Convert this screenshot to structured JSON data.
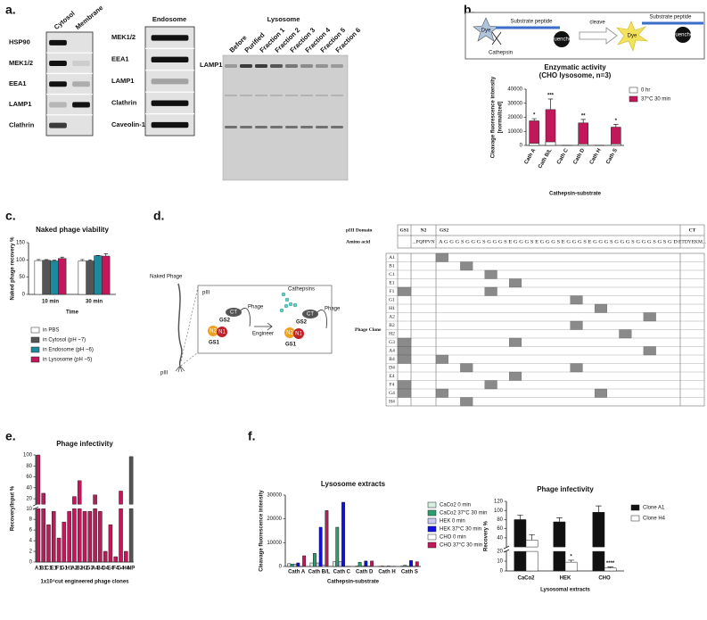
{
  "panel_labels": {
    "a": "a.",
    "b": "b.",
    "c": "c.",
    "d": "d.",
    "e": "e.",
    "f": "f."
  },
  "blots": {
    "cytosol_membrane": {
      "columns": [
        "Cytosol",
        "Membrane"
      ],
      "rows": [
        "HSP90",
        "MEK1/2",
        "EEA1",
        "LAMP1",
        "Clathrin"
      ]
    },
    "endosome": {
      "title": "Endosome",
      "rows": [
        "MEK1/2",
        "EEA1",
        "LAMP1",
        "Clathrin",
        "Caveolin-1"
      ]
    },
    "lysosome": {
      "title": "Lysosome",
      "columns": [
        "Before",
        "Purified",
        "Fraction 1",
        "Fraction 2",
        "Fraction 3",
        "Fraction 4",
        "Fraction 5",
        "Fraction 6"
      ],
      "rows": [
        "LAMP1"
      ]
    }
  },
  "schematic_b": {
    "substrate_left": "Substrate peptide",
    "dye_left": "Dye",
    "quencher_left": "Quencher",
    "enzyme": "Cathepsin",
    "arrow": "cleave",
    "substrate_right": "Substrate peptide",
    "dye_right": "Dye",
    "quencher_right": "Quencher"
  },
  "schematic_d": {
    "naked_phage": "Naked Phage",
    "piii_outer": "pIII",
    "piii_inner": "pIII",
    "arrow": "Engineer",
    "cathepsins": "Cathepsins",
    "before": {
      "gs2": "GS2",
      "n2": "N2",
      "n1": "N1",
      "gs1": "GS1",
      "ct": "CT",
      "phage": "Phage"
    },
    "after": {
      "gs2": "GS2",
      "n2": "N2",
      "n1": "N1",
      "gs1": "GS1",
      "ct": "CT",
      "phage": "Phage"
    }
  },
  "cut_table": {
    "domain_label": "pIII Domain",
    "domains": [
      "GS1",
      "N2",
      "GS2",
      "CT"
    ],
    "aa_label": "Amino acid",
    "aa": {
      "n2": "...PQPPVN",
      "gs2": "A G G G S G G G S G G G S E G G G S E G G G S E G G G S E G G G S G G G S G G G S G S G D",
      "ct": "ETDYEKM..."
    },
    "clone_label": "Phage Clone",
    "clones": [
      {
        "name": "A1",
        "gs1_cut": false,
        "cuts": [
          0
        ]
      },
      {
        "name": "B1",
        "gs1_cut": false,
        "cuts": [
          2
        ]
      },
      {
        "name": "C1",
        "gs1_cut": false,
        "cuts": [
          4
        ]
      },
      {
        "name": "E1",
        "gs1_cut": false,
        "cuts": [
          6
        ]
      },
      {
        "name": "F1",
        "gs1_cut": true,
        "cuts": [
          4
        ]
      },
      {
        "name": "G1",
        "gs1_cut": false,
        "cuts": [
          11
        ]
      },
      {
        "name": "H1",
        "gs1_cut": false,
        "cuts": [
          13
        ]
      },
      {
        "name": "A2",
        "gs1_cut": false,
        "cuts": [
          17
        ]
      },
      {
        "name": "B2",
        "gs1_cut": false,
        "cuts": [
          11
        ]
      },
      {
        "name": "H2",
        "gs1_cut": false,
        "cuts": [
          15
        ]
      },
      {
        "name": "G3",
        "gs1_cut": true,
        "cuts": [
          6
        ]
      },
      {
        "name": "A4",
        "gs1_cut": true,
        "cuts": [
          17
        ]
      },
      {
        "name": "B4",
        "gs1_cut": true,
        "cuts": [
          0
        ]
      },
      {
        "name": "D4",
        "gs1_cut": false,
        "cuts": [
          2,
          11
        ]
      },
      {
        "name": "E4",
        "gs1_cut": false,
        "cuts": [
          6
        ]
      },
      {
        "name": "F4",
        "gs1_cut": true,
        "cuts": [
          4
        ]
      },
      {
        "name": "G4",
        "gs1_cut": true,
        "cuts": [
          0,
          13
        ]
      },
      {
        "name": "H4",
        "gs1_cut": false,
        "cuts": [
          2
        ]
      }
    ]
  },
  "chart_data": [
    {
      "type": "bar",
      "title": "Enzymatic activity",
      "subtitle": "(CHO lysosome, n=3)",
      "xlabel": "Cathepsin-substrate",
      "ylabel": [
        "Cleavage fluorescence intensity",
        "[normalized]"
      ],
      "categories": [
        "Cath A",
        "Cath B/L",
        "Cath C",
        "Cath D",
        "Cath H",
        "Cath S"
      ],
      "overlap": true,
      "series": [
        {
          "name": "0 hr",
          "color": "#ffffff",
          "values": [
            1500,
            2500,
            0,
            1000,
            0,
            1000
          ]
        },
        {
          "name": "37°C 30 min",
          "color": "#c2185b",
          "values": [
            17500,
            25500,
            0,
            16000,
            0,
            13000
          ],
          "errors": [
            1500,
            7500,
            0,
            2500,
            0,
            2000
          ],
          "annotations": [
            "*",
            "***",
            null,
            "**",
            null,
            "*"
          ]
        }
      ],
      "ylim": [
        0,
        40000
      ],
      "yticks": [
        0,
        10000,
        20000,
        30000,
        40000
      ]
    },
    {
      "type": "bar",
      "title": "Naked phage viability",
      "xlabel": "Time",
      "ylabel": "Naked phage recovery %",
      "categories": [
        "10 min",
        "30 min"
      ],
      "series": [
        {
          "name": "in PBS",
          "color": "#ffffff",
          "values": [
            98,
            97
          ],
          "errors": [
            3,
            4
          ]
        },
        {
          "name": "in Cytosol (pH ~7)",
          "color": "#555555",
          "values": [
            99,
            97
          ],
          "errors": [
            2,
            3
          ]
        },
        {
          "name": "in Endosome (pH ~6)",
          "color": "#1b8a9c",
          "values": [
            97,
            112
          ],
          "errors": [
            2,
            1
          ]
        },
        {
          "name": "in Lysosome (pH ~5)",
          "color": "#c2185b",
          "values": [
            104,
            111
          ],
          "errors": [
            4,
            7
          ]
        }
      ],
      "ylim": [
        0,
        150
      ],
      "yticks": [
        0,
        50,
        100,
        150
      ]
    },
    {
      "type": "bar",
      "title": "Phage infectivity",
      "xlabel": "1x10⁴cut engineered phage clones",
      "ylabel": "Recovery/Input %",
      "categories": [
        "A1",
        "B1",
        "C1",
        "E1",
        "F1",
        "G1",
        "H1",
        "A2",
        "B2",
        "H2",
        "G3",
        "A4",
        "B4",
        "D4",
        "E4",
        "F4",
        "G4",
        "H4",
        "NP"
      ],
      "values": [
        100,
        30,
        7,
        9.5,
        4.5,
        7.5,
        9.5,
        24,
        53,
        9.5,
        9.5,
        27,
        9.5,
        2,
        7,
        1,
        34,
        2,
        97
      ],
      "colors": [
        "#c2185b",
        "#c2185b",
        "#c2185b",
        "#c2185b",
        "#c2185b",
        "#c2185b",
        "#c2185b",
        "#c2185b",
        "#c2185b",
        "#c2185b",
        "#c2185b",
        "#c2185b",
        "#c2185b",
        "#c2185b",
        "#c2185b",
        "#c2185b",
        "#c2185b",
        "#c2185b",
        "#555555"
      ],
      "ylim_segments": [
        [
          0,
          10
        ],
        [
          10,
          100
        ]
      ],
      "yticks": [
        0,
        2,
        4,
        6,
        8,
        10,
        20,
        40,
        60,
        80,
        100
      ]
    },
    {
      "type": "bar",
      "title": "Lysosome extracts",
      "xlabel": "Cathepsin-substrate",
      "ylabel": "Cleavage fluorescence intensity",
      "categories": [
        "Cath A",
        "Cath B/L",
        "Cath C",
        "Cath D",
        "Cath H",
        "Cath S"
      ],
      "series": [
        {
          "name": "CaCo2 0 min",
          "color": "#d4f0e0",
          "values": [
            1200,
            1500,
            2000,
            200,
            0,
            200
          ]
        },
        {
          "name": "CaCo2 37°C 30 min",
          "color": "#2e9e6e",
          "values": [
            1000,
            5500,
            16500,
            1800,
            200,
            500
          ]
        },
        {
          "name": "HEK 0 min",
          "color": "#c8c8f0",
          "values": [
            1000,
            1500,
            2000,
            200,
            0,
            200
          ]
        },
        {
          "name": "HEK 37°C 30 min",
          "color": "#1010e0",
          "values": [
            1500,
            16500,
            27000,
            2300,
            200,
            2500
          ]
        },
        {
          "name": "CHO 0 min",
          "color": "#ffffff",
          "values": [
            0,
            500,
            0,
            200,
            0,
            100
          ]
        },
        {
          "name": "CHO 37°C 30 min",
          "color": "#c2185b",
          "values": [
            4500,
            23500,
            0,
            2300,
            100,
            2000
          ]
        }
      ],
      "ylim": [
        0,
        30000
      ],
      "yticks": [
        0,
        10000,
        20000,
        30000
      ]
    },
    {
      "type": "bar",
      "title": "Phage infectivity",
      "xlabel": "Lysosomal extracts",
      "ylabel": "Recovery %",
      "categories": [
        "CaCo2",
        "HEK",
        "CHO"
      ],
      "series": [
        {
          "name": "Clone A1",
          "color": "#111111",
          "values": [
            80,
            75,
            96
          ],
          "errors": [
            10,
            9,
            14
          ]
        },
        {
          "name": "Clone H4",
          "color": "#ffffff",
          "values": [
            35,
            9,
            3
          ],
          "errors": [
            12,
            2,
            1
          ],
          "annotations": [
            null,
            "*",
            "****"
          ]
        }
      ],
      "ylim_segments": [
        [
          0,
          20
        ],
        [
          20,
          120
        ]
      ],
      "yticks": [
        0,
        10,
        20,
        40,
        60,
        80,
        100,
        120
      ]
    }
  ]
}
